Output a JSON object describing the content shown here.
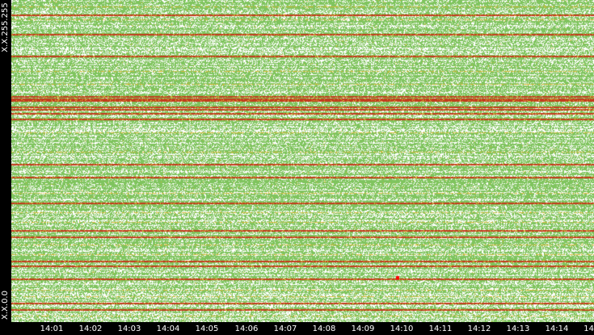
{
  "chart_data": {
    "type": "heatmap",
    "title": "",
    "xlabel": "",
    "ylabel": "",
    "y_labels": {
      "top": "X.X.255.255",
      "bottom": "X.X.0.0"
    },
    "x_ticks": [
      "14:01",
      "14:02",
      "14:03",
      "14:04",
      "14:05",
      "14:06",
      "14:07",
      "14:08",
      "14:09",
      "14:10",
      "14:11",
      "14:12",
      "14:13",
      "14:14",
      "14"
    ],
    "colors": {
      "background": "#ffffff",
      "low": "#7fc45e",
      "mid": "#d9b93a",
      "high": "#c33a1c",
      "peak": "#ff0000"
    },
    "high_rows_fraction": [
      0.045,
      0.105,
      0.172,
      0.297,
      0.305,
      0.312,
      0.33,
      0.338,
      0.352,
      0.368,
      0.51,
      0.55,
      0.63,
      0.715,
      0.735,
      0.81,
      0.825,
      0.865,
      0.94,
      0.96
    ],
    "mid_rows_fraction": [
      0.02,
      0.06,
      0.22,
      0.26,
      0.41,
      0.47,
      0.6,
      0.66,
      0.69,
      0.76,
      0.79,
      0.9,
      0.92,
      0.98
    ],
    "grid": false,
    "legend": "none"
  }
}
